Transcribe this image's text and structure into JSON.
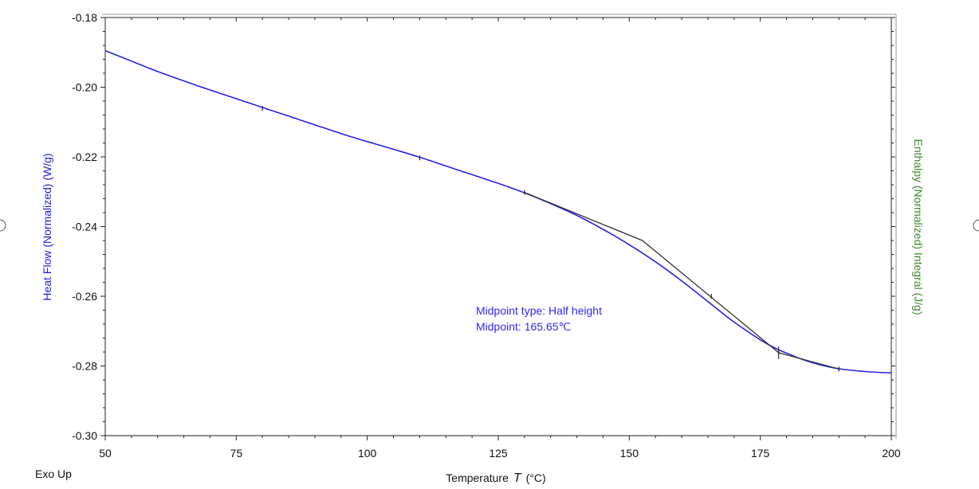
{
  "chart_data": {
    "type": "line",
    "xlabel": "Temperature",
    "xlabel_symbol": "T",
    "xlabel_unit": "(°C)",
    "ylabel": "Heat Flow (Normalized)  (W/g)",
    "ylabel_right": "Enthalpy (Normalized) Integral  (J/g)",
    "corner_note": "Exo Up",
    "xlim": [
      50,
      200
    ],
    "ylim": [
      -0.3,
      -0.18
    ],
    "x_ticks": [
      50,
      75,
      100,
      125,
      150,
      175,
      200
    ],
    "y_ticks": [
      "-0.18",
      "-0.20",
      "-0.22",
      "-0.24",
      "-0.26",
      "-0.28",
      "-0.30"
    ],
    "grid": false,
    "annotations": [
      {
        "text": "Midpoint type: Half height"
      },
      {
        "text": "Midpoint: 165.65℃"
      }
    ],
    "series": [
      {
        "color": "#2323e8",
        "x": [
          50,
          55,
          60,
          65,
          70,
          75,
          80,
          85,
          90,
          95,
          100,
          105,
          110,
          115,
          120,
          125,
          130,
          135,
          140,
          145,
          150,
          155,
          160,
          165,
          170,
          175,
          178,
          180,
          183,
          186,
          190,
          195,
          200
        ],
        "y": [
          -0.1895,
          -0.1925,
          -0.1955,
          -0.1982,
          -0.2008,
          -0.2033,
          -0.2058,
          -0.2083,
          -0.2108,
          -0.2133,
          -0.2156,
          -0.2178,
          -0.2201,
          -0.2226,
          -0.2251,
          -0.2276,
          -0.2303,
          -0.2334,
          -0.2368,
          -0.2408,
          -0.2452,
          -0.2501,
          -0.2556,
          -0.2615,
          -0.2674,
          -0.2725,
          -0.275,
          -0.2763,
          -0.2781,
          -0.2795,
          -0.2808,
          -0.2816,
          -0.282
        ]
      },
      {
        "color": "#333333",
        "x": [
          130,
          152.5,
          178.5,
          190
        ],
        "y": [
          -0.2302,
          -0.244,
          -0.2762,
          -0.2809
        ]
      }
    ],
    "markers": [
      {
        "x": 80,
        "y": -0.2061
      },
      {
        "x": 110,
        "y": -0.2203
      },
      {
        "x": 130,
        "y": -0.2302
      },
      {
        "x": 165.65,
        "y": -0.26
      },
      {
        "x": 178.5,
        "y": -0.2762
      },
      {
        "x": 190,
        "y": -0.2809
      }
    ]
  }
}
